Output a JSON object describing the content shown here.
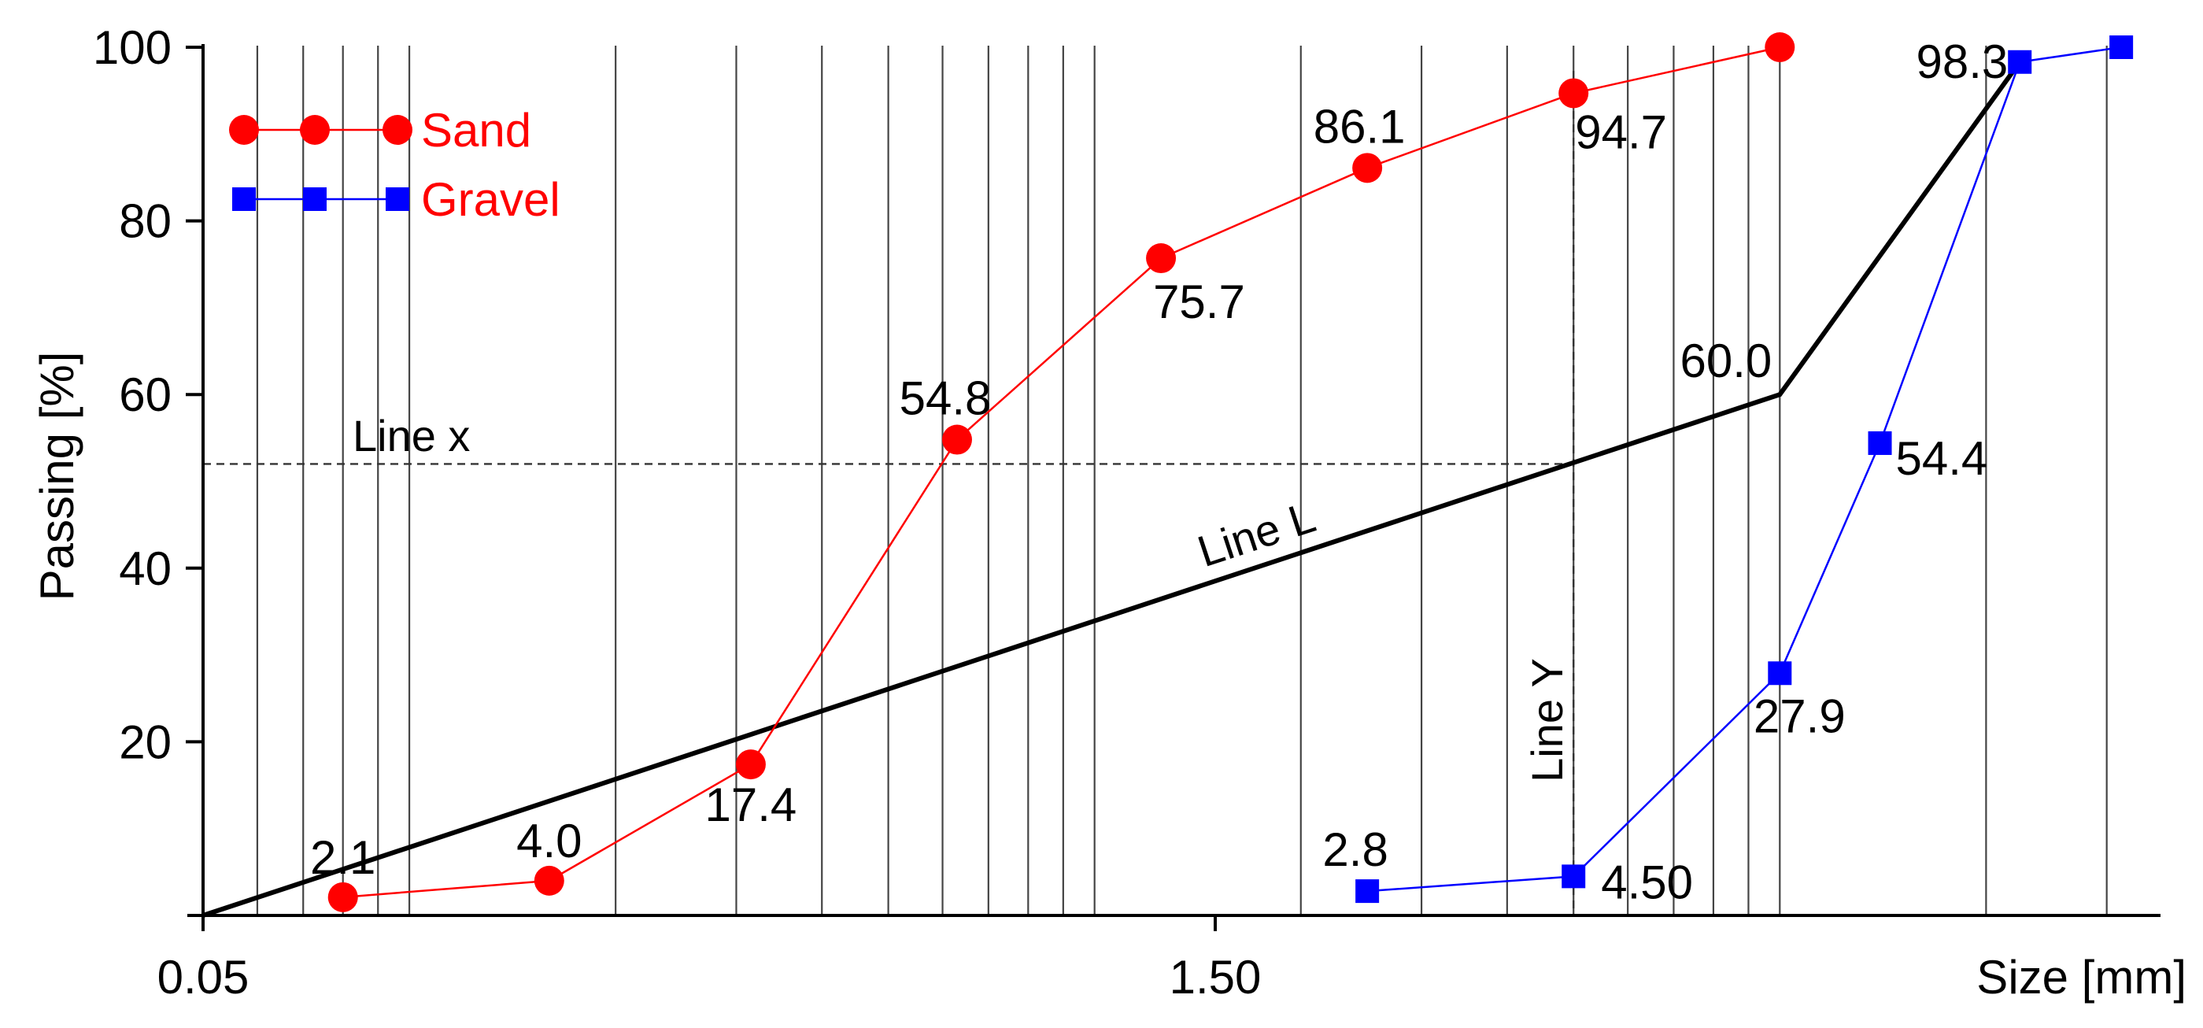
{
  "chart_data": {
    "type": "line",
    "xlabel": "Size [mm]",
    "ylabel": "Passing [%]",
    "ylim": [
      0,
      100
    ],
    "y_ticks": [
      "0",
      "20",
      "40",
      "60",
      "80",
      "100"
    ],
    "x_scale": "log",
    "x_tick_labels": [
      "0.05",
      "1.50"
    ],
    "grid": "vertical log-spaced lines",
    "legend_position": "top-left",
    "colors": {
      "Sand": "#ff0000",
      "Gravel": "#0000ff",
      "Line L": "#000000",
      "legend_text": "#ff0000"
    },
    "series": [
      {
        "name": "Sand",
        "marker": "circle",
        "color": "#ff0000",
        "x": [
          0.08,
          0.16,
          0.315,
          0.63,
          1.25,
          2.5,
          5,
          10
        ],
        "y": [
          2.1,
          4.0,
          17.4,
          54.8,
          75.7,
          86.1,
          94.7,
          100
        ],
        "labels": [
          "2.1",
          "4.0",
          "17.4",
          "54.8",
          "75.7",
          "86.1",
          "94.7",
          ""
        ]
      },
      {
        "name": "Gravel",
        "marker": "square",
        "color": "#0000ff",
        "x": [
          2.5,
          5,
          10,
          14,
          22.4,
          31.5
        ],
        "y": [
          2.8,
          4.5,
          27.9,
          54.4,
          98.3,
          100
        ],
        "labels": [
          "2.8",
          "4.50",
          "27.9",
          "54.4",
          "98.3",
          ""
        ]
      }
    ],
    "lines": [
      {
        "name": "Line L",
        "color": "#000000",
        "x": [
          0.05,
          10,
          22.4
        ],
        "y": [
          0,
          60,
          98.3
        ],
        "labels": [
          "",
          "60.0",
          ""
        ]
      }
    ],
    "reference_lines": [
      {
        "name": "Line x",
        "orientation": "horizontal",
        "y": 52,
        "style": "dashed"
      },
      {
        "name": "Line Y",
        "orientation": "vertical",
        "x": 5,
        "style": "dashed"
      }
    ]
  }
}
